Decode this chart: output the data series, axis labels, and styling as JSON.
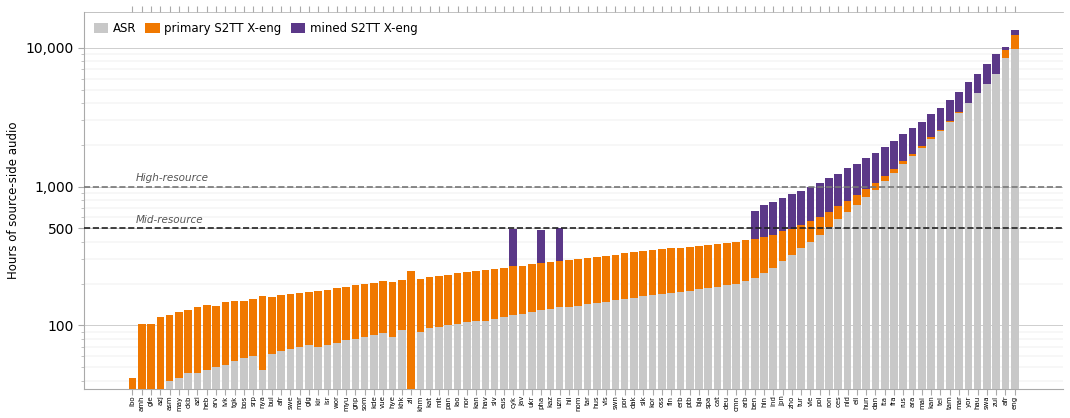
{
  "color_asr": "#c8c8c8",
  "color_primary": "#f07800",
  "color_mined": "#5b3888",
  "ylabel": "Hours of source-side audio",
  "legend_labels": [
    "ASR",
    "primary S2TT X-eng",
    "mined S2TT X-eng"
  ],
  "high_resource_val": 1000,
  "mid_resource_val": 500,
  "high_resource_label": "High-resource",
  "mid_resource_label": "Mid-resource",
  "ylim_min": 35,
  "ylim_max": 18000,
  "yticks": [
    100,
    500,
    1000,
    10000
  ],
  "ytick_labels": [
    "100",
    "500",
    "1,000",
    "10,000"
  ],
  "lang_codes": [
    "ibo",
    "amh",
    "gle",
    "azj",
    "asm",
    "may",
    "ckb",
    "azi",
    "heb",
    "arv",
    "lvk",
    "tgk",
    "bos",
    "srp",
    "nya",
    "bul",
    "afr",
    "swe",
    "mar",
    "glg",
    "kir",
    "isr",
    "wor",
    "myu",
    "gnp",
    "som",
    "kde",
    "vue",
    "hye",
    "khk",
    "zli",
    "khm",
    "kat",
    "mit",
    "pan",
    "lao",
    "nor",
    "kan",
    "hav",
    "siv",
    "eus",
    "cyk",
    "jav",
    "ukr",
    "pha",
    "kaz",
    "uzn",
    "hil",
    "nom",
    "tar",
    "hus",
    "vis",
    "swn",
    "por",
    "dak",
    "sik",
    "kor",
    "oss",
    "fin",
    "erb",
    "ptb",
    "bja",
    "spa",
    "cat",
    "deu",
    "cmn",
    "arb",
    "ben",
    "hin",
    "ind",
    "jpn",
    "zho",
    "tur",
    "vie",
    "pol",
    "ron",
    "ces",
    "nld",
    "ell",
    "hun",
    "dan",
    "ita",
    "fra",
    "rus",
    "ara",
    "mal",
    "kan",
    "tel",
    "tam",
    "mar",
    "yor",
    "hau",
    "swa",
    "zul",
    "afr",
    "eng"
  ],
  "asr_vals": [
    20,
    30,
    35,
    35,
    40,
    42,
    45,
    45,
    48,
    50,
    52,
    55,
    58,
    60,
    48,
    62,
    65,
    68,
    70,
    72,
    70,
    72,
    75,
    78,
    80,
    82,
    85,
    88,
    82,
    92,
    28,
    90,
    95,
    98,
    100,
    102,
    105,
    108,
    108,
    112,
    115,
    118,
    120,
    125,
    128,
    132,
    135,
    135,
    138,
    142,
    145,
    148,
    152,
    155,
    158,
    162,
    165,
    168,
    172,
    175,
    178,
    182,
    185,
    190,
    195,
    200,
    210,
    220,
    240,
    260,
    290,
    320,
    360,
    400,
    450,
    510,
    580,
    660,
    740,
    840,
    950,
    1100,
    1250,
    1450,
    1650,
    1900,
    2200,
    2500,
    2900,
    3400,
    4000,
    4700,
    5500,
    6500,
    8500,
    9800
  ],
  "primary_vals": [
    22,
    72,
    68,
    80,
    78,
    82,
    85,
    90,
    92,
    88,
    95,
    95,
    92,
    95,
    115,
    98,
    100,
    100,
    102,
    102,
    108,
    108,
    112,
    112,
    115,
    118,
    118,
    120,
    125,
    122,
    220,
    125,
    128,
    130,
    132,
    135,
    138,
    140,
    142,
    142,
    145,
    148,
    148,
    150,
    152,
    155,
    158,
    162,
    162,
    165,
    168,
    170,
    172,
    175,
    178,
    180,
    182,
    185,
    188,
    188,
    190,
    192,
    195,
    198,
    200,
    202,
    200,
    198,
    195,
    190,
    185,
    178,
    170,
    162,
    155,
    148,
    140,
    132,
    125,
    118,
    110,
    102,
    95,
    88,
    80,
    72,
    65,
    58,
    52,
    46,
    40,
    35,
    30,
    25,
    1200,
    2500
  ],
  "mined_vals": [
    0,
    0,
    0,
    0,
    0,
    0,
    0,
    0,
    0,
    0,
    0,
    0,
    0,
    0,
    0,
    0,
    0,
    0,
    0,
    0,
    0,
    0,
    0,
    0,
    0,
    0,
    0,
    0,
    0,
    0,
    0,
    0,
    0,
    0,
    0,
    0,
    0,
    0,
    0,
    0,
    0,
    230,
    0,
    0,
    210,
    0,
    210,
    0,
    0,
    0,
    0,
    0,
    0,
    0,
    0,
    0,
    0,
    0,
    0,
    0,
    0,
    0,
    0,
    0,
    0,
    0,
    0,
    250,
    300,
    320,
    350,
    380,
    400,
    430,
    460,
    490,
    520,
    560,
    600,
    640,
    680,
    720,
    780,
    840,
    900,
    960,
    1050,
    1150,
    1250,
    1400,
    1600,
    1800,
    2100,
    2500,
    500,
    1200
  ]
}
